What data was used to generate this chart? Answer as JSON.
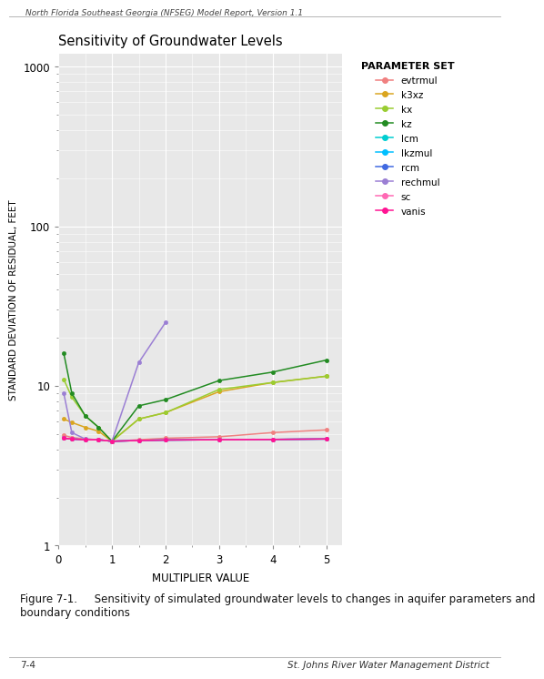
{
  "title": "Sensitivity of Groundwater Levels",
  "xlabel": "MULTIPLIER VALUE",
  "ylabel": "STANDARD DEVIATION OF RESIDUAL, FEET",
  "legend_title": "PARAMETER SET",
  "x_values": [
    0.1,
    0.25,
    0.5,
    0.75,
    1.0,
    1.5,
    2.0,
    3.0,
    4.0,
    5.0
  ],
  "series": {
    "evtrmul": {
      "color": "#F08080",
      "y": [
        4.9,
        4.75,
        4.65,
        4.6,
        4.5,
        4.6,
        4.7,
        4.8,
        5.1,
        5.3
      ]
    },
    "k3xz": {
      "color": "#DAA520",
      "y": [
        6.2,
        5.9,
        5.5,
        5.2,
        4.5,
        6.2,
        6.8,
        9.2,
        10.5,
        11.5
      ]
    },
    "kx": {
      "color": "#9ACD32",
      "y": [
        11.0,
        8.5,
        6.5,
        5.5,
        4.5,
        6.2,
        6.8,
        9.5,
        10.5,
        11.5
      ]
    },
    "kz": {
      "color": "#228B22",
      "y": [
        16.0,
        9.0,
        6.5,
        5.5,
        4.5,
        7.5,
        8.2,
        10.8,
        12.2,
        14.5
      ]
    },
    "lcm": {
      "color": "#00CED1",
      "y": [
        4.7,
        4.65,
        4.6,
        4.6,
        4.5,
        4.55,
        4.58,
        4.6,
        4.62,
        4.65
      ]
    },
    "lkzmul": {
      "color": "#00BFFF",
      "y": [
        4.7,
        4.65,
        4.6,
        4.6,
        4.5,
        4.55,
        4.58,
        4.6,
        4.62,
        4.65
      ]
    },
    "rcm": {
      "color": "#4169E1",
      "y": [
        4.7,
        4.65,
        4.6,
        4.6,
        4.5,
        4.55,
        4.58,
        4.6,
        4.62,
        4.65
      ]
    },
    "rechmul": {
      "color": "#9B7FD4",
      "y": [
        9.0,
        5.1,
        4.65,
        4.6,
        4.5,
        14.0,
        25.0,
        null,
        null,
        null
      ]
    },
    "sc": {
      "color": "#FF69B4",
      "y": [
        4.7,
        4.65,
        4.6,
        4.6,
        4.5,
        4.55,
        4.58,
        4.6,
        4.62,
        4.65
      ]
    },
    "vanis": {
      "color": "#FF1493",
      "y": [
        4.7,
        4.65,
        4.6,
        4.6,
        4.5,
        4.55,
        4.58,
        4.6,
        4.62,
        4.65
      ]
    }
  },
  "header_text": "North Florida Southeast Georgia (NFSEG) Model Report, Version 1.1",
  "footer_text": "St. Johns River Water Management District",
  "footer_left": "7-4",
  "caption": "Figure 7-1.     Sensitivity of simulated groundwater levels to changes in aquifer parameters and\nboundary conditions",
  "plot_bg_color": "#E8E8E8"
}
